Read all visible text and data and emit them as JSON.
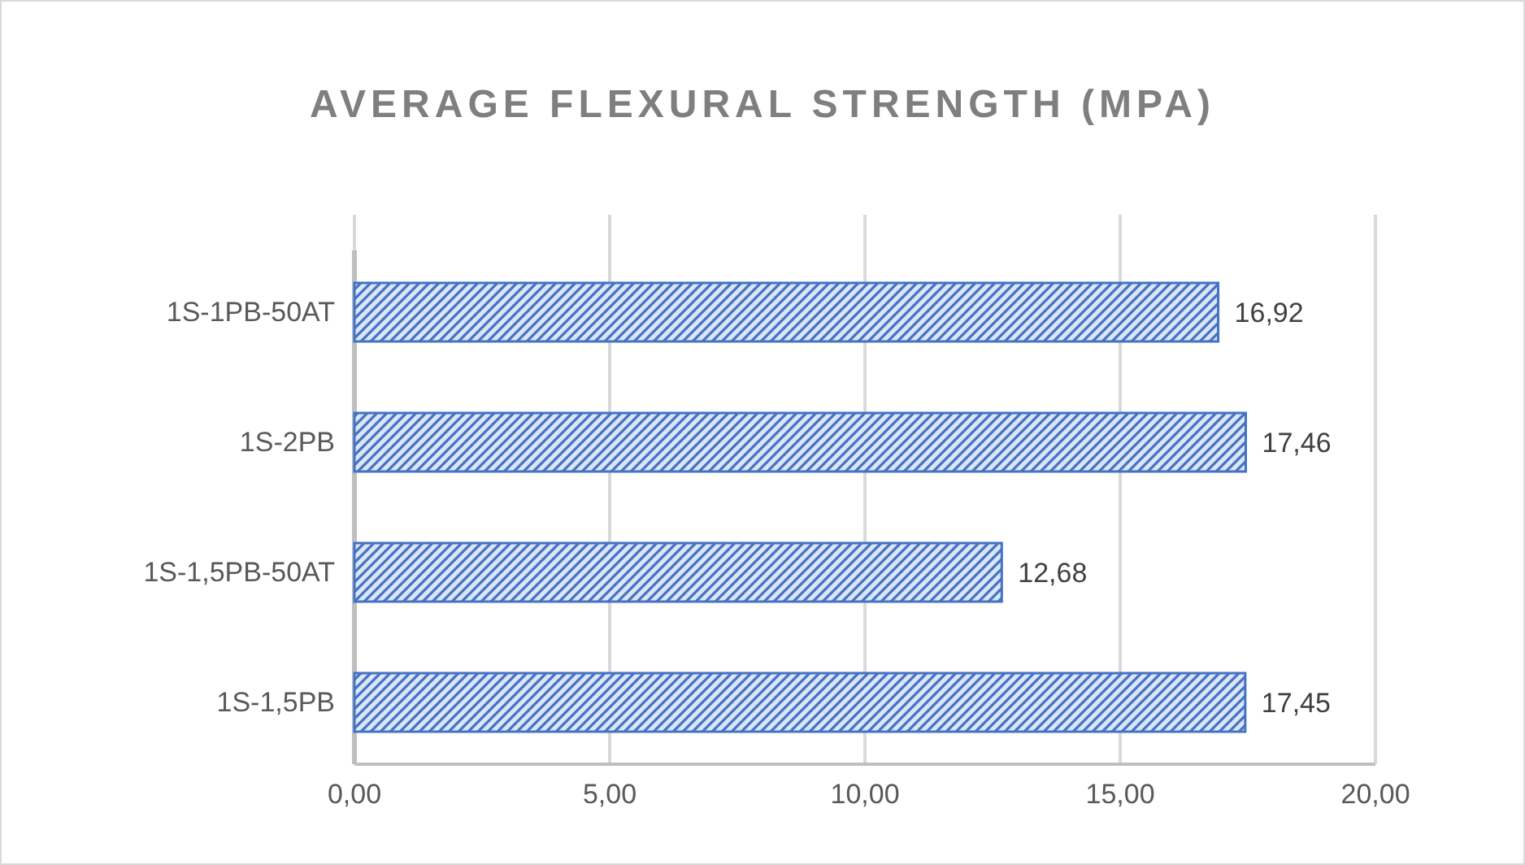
{
  "chart_data": {
    "type": "bar",
    "orientation": "horizontal",
    "title": "AVERAGE FLEXURAL STRENGTH  (MPA)",
    "categories": [
      "1S-1PB-50AT",
      "1S-2PB",
      "1S-1,5PB-50AT",
      "1S-1,5PB"
    ],
    "values": [
      16.92,
      17.46,
      12.68,
      17.45
    ],
    "value_labels": [
      "16,92",
      "17,46",
      "12,68",
      "17,45"
    ],
    "color": "#4472c4",
    "xlim": [
      0,
      20
    ],
    "xticks": [
      {
        "value": 0,
        "label": "0,00"
      },
      {
        "value": 5,
        "label": "5,00"
      },
      {
        "value": 10,
        "label": "10,00"
      },
      {
        "value": 15,
        "label": "15,00"
      },
      {
        "value": 20,
        "label": "20,00"
      }
    ],
    "grid": "x"
  }
}
